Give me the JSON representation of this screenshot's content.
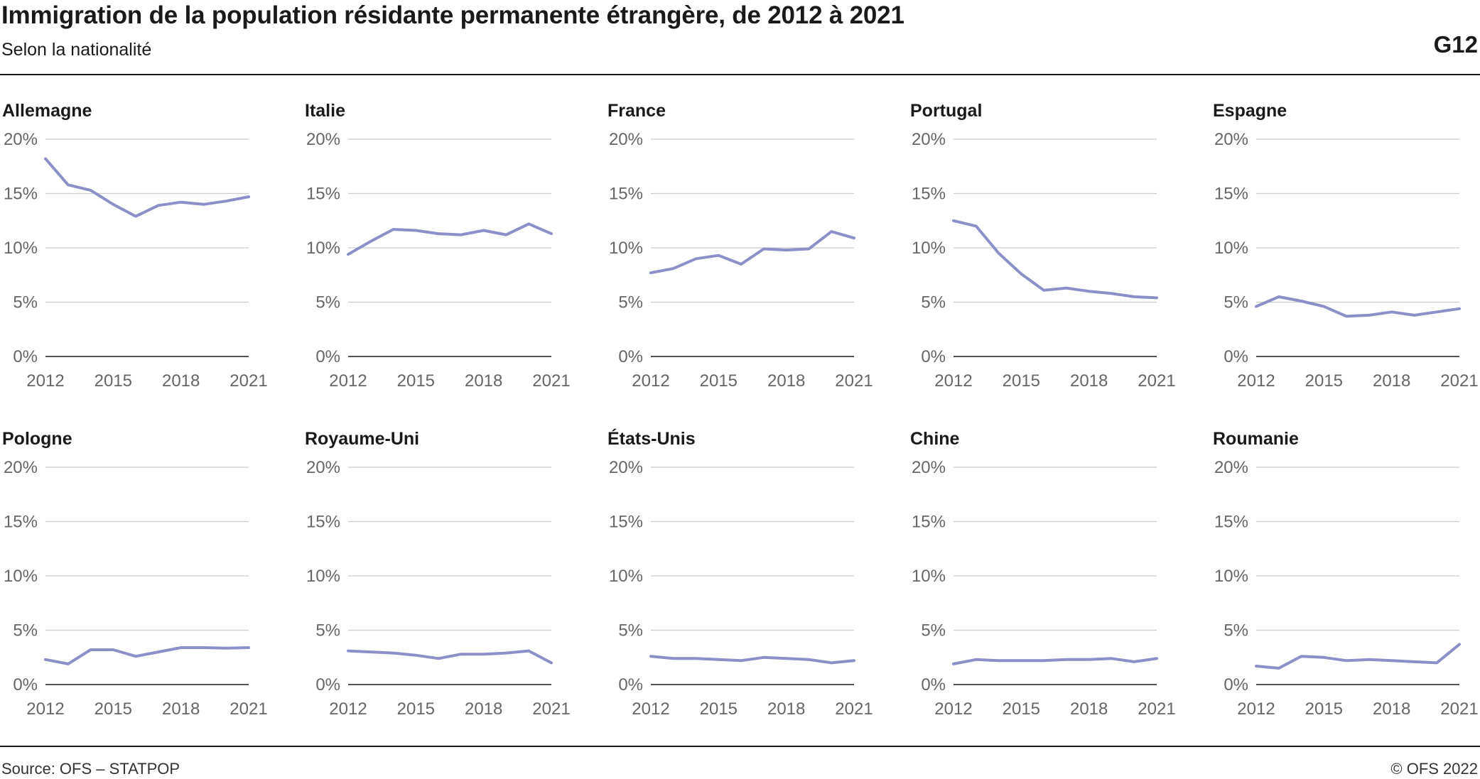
{
  "header": {
    "title": "Immigration de la population résidante permanente étrangère, de 2012 à 2021",
    "subtitle": "Selon la nationalité",
    "chart_id": "G12"
  },
  "footer": {
    "source": "Source: OFS – STATPOP",
    "copyright": "© OFS 2022"
  },
  "style": {
    "line_color": "#8b90c8",
    "grid_color": "#cccccc",
    "axis_color": "#1a1a1a"
  },
  "chart_data": [
    {
      "type": "line",
      "title": "Allemagne",
      "x": [
        2012,
        2013,
        2014,
        2015,
        2016,
        2017,
        2018,
        2019,
        2020,
        2021
      ],
      "values": [
        18.2,
        15.8,
        15.3,
        14.0,
        12.9,
        13.9,
        14.2,
        14.0,
        14.3,
        14.7
      ],
      "ylim": [
        0,
        20
      ],
      "yticks": [
        "0%",
        "5%",
        "10%",
        "15%",
        "20%"
      ],
      "xticks": [
        "2012",
        "2015",
        "2018",
        "2021"
      ],
      "grid": true
    },
    {
      "type": "line",
      "title": "Italie",
      "x": [
        2012,
        2013,
        2014,
        2015,
        2016,
        2017,
        2018,
        2019,
        2020,
        2021
      ],
      "values": [
        9.4,
        10.6,
        11.7,
        11.6,
        11.3,
        11.2,
        11.6,
        11.2,
        12.2,
        11.3
      ],
      "ylim": [
        0,
        20
      ],
      "yticks": [
        "0%",
        "5%",
        "10%",
        "15%",
        "20%"
      ],
      "xticks": [
        "2012",
        "2015",
        "2018",
        "2021"
      ],
      "grid": true
    },
    {
      "type": "line",
      "title": "France",
      "x": [
        2012,
        2013,
        2014,
        2015,
        2016,
        2017,
        2018,
        2019,
        2020,
        2021
      ],
      "values": [
        7.7,
        8.1,
        9.0,
        9.3,
        8.5,
        9.9,
        9.8,
        9.9,
        11.5,
        10.9
      ],
      "ylim": [
        0,
        20
      ],
      "yticks": [
        "0%",
        "5%",
        "10%",
        "15%",
        "20%"
      ],
      "xticks": [
        "2012",
        "2015",
        "2018",
        "2021"
      ],
      "grid": true
    },
    {
      "type": "line",
      "title": "Portugal",
      "x": [
        2012,
        2013,
        2014,
        2015,
        2016,
        2017,
        2018,
        2019,
        2020,
        2021
      ],
      "values": [
        12.5,
        12.0,
        9.5,
        7.6,
        6.1,
        6.3,
        6.0,
        5.8,
        5.5,
        5.4
      ],
      "ylim": [
        0,
        20
      ],
      "yticks": [
        "0%",
        "5%",
        "10%",
        "15%",
        "20%"
      ],
      "xticks": [
        "2012",
        "2015",
        "2018",
        "2021"
      ],
      "grid": true
    },
    {
      "type": "line",
      "title": "Espagne",
      "x": [
        2012,
        2013,
        2014,
        2015,
        2016,
        2017,
        2018,
        2019,
        2020,
        2021
      ],
      "values": [
        4.6,
        5.5,
        5.1,
        4.6,
        3.7,
        3.8,
        4.1,
        3.8,
        4.1,
        4.4
      ],
      "ylim": [
        0,
        20
      ],
      "yticks": [
        "0%",
        "5%",
        "10%",
        "15%",
        "20%"
      ],
      "xticks": [
        "2012",
        "2015",
        "2018",
        "2021"
      ],
      "grid": true
    },
    {
      "type": "line",
      "title": "Pologne",
      "x": [
        2012,
        2013,
        2014,
        2015,
        2016,
        2017,
        2018,
        2019,
        2020,
        2021
      ],
      "values": [
        2.3,
        1.9,
        3.2,
        3.2,
        2.6,
        3.0,
        3.4,
        3.4,
        3.35,
        3.4
      ],
      "ylim": [
        0,
        20
      ],
      "yticks": [
        "0%",
        "5%",
        "10%",
        "15%",
        "20%"
      ],
      "xticks": [
        "2012",
        "2015",
        "2018",
        "2021"
      ],
      "grid": true
    },
    {
      "type": "line",
      "title": "Royaume-Uni",
      "x": [
        2012,
        2013,
        2014,
        2015,
        2016,
        2017,
        2018,
        2019,
        2020,
        2021
      ],
      "values": [
        3.1,
        3.0,
        2.9,
        2.7,
        2.4,
        2.8,
        2.8,
        2.9,
        3.1,
        2.0
      ],
      "ylim": [
        0,
        20
      ],
      "yticks": [
        "0%",
        "5%",
        "10%",
        "15%",
        "20%"
      ],
      "xticks": [
        "2012",
        "2015",
        "2018",
        "2021"
      ],
      "grid": true
    },
    {
      "type": "line",
      "title": "États-Unis",
      "x": [
        2012,
        2013,
        2014,
        2015,
        2016,
        2017,
        2018,
        2019,
        2020,
        2021
      ],
      "values": [
        2.6,
        2.4,
        2.4,
        2.3,
        2.2,
        2.5,
        2.4,
        2.3,
        2.0,
        2.2
      ],
      "ylim": [
        0,
        20
      ],
      "yticks": [
        "0%",
        "5%",
        "10%",
        "15%",
        "20%"
      ],
      "xticks": [
        "2012",
        "2015",
        "2018",
        "2021"
      ],
      "grid": true
    },
    {
      "type": "line",
      "title": "Chine",
      "x": [
        2012,
        2013,
        2014,
        2015,
        2016,
        2017,
        2018,
        2019,
        2020,
        2021
      ],
      "values": [
        1.9,
        2.3,
        2.2,
        2.2,
        2.2,
        2.3,
        2.3,
        2.4,
        2.1,
        2.4
      ],
      "ylim": [
        0,
        20
      ],
      "yticks": [
        "0%",
        "5%",
        "10%",
        "15%",
        "20%"
      ],
      "xticks": [
        "2012",
        "2015",
        "2018",
        "2021"
      ],
      "grid": true
    },
    {
      "type": "line",
      "title": "Roumanie",
      "x": [
        2012,
        2013,
        2014,
        2015,
        2016,
        2017,
        2018,
        2019,
        2020,
        2021
      ],
      "values": [
        1.7,
        1.5,
        2.6,
        2.5,
        2.2,
        2.3,
        2.2,
        2.1,
        2.0,
        3.7
      ],
      "ylim": [
        0,
        20
      ],
      "yticks": [
        "0%",
        "5%",
        "10%",
        "15%",
        "20%"
      ],
      "xticks": [
        "2012",
        "2015",
        "2018",
        "2021"
      ],
      "grid": true
    }
  ]
}
